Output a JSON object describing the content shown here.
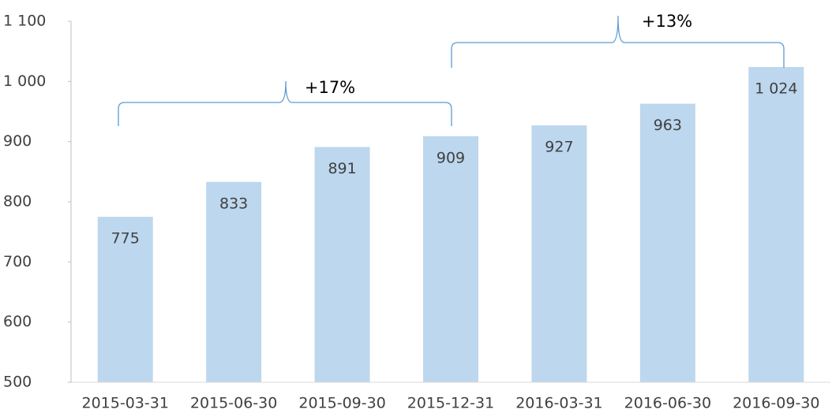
{
  "chart_data": {
    "type": "bar",
    "categories": [
      "2015-03-31",
      "2015-06-30",
      "2015-09-30",
      "2015-12-31",
      "2016-03-31",
      "2016-06-30",
      "2016-09-30"
    ],
    "values": [
      775,
      833,
      891,
      909,
      927,
      963,
      1024
    ],
    "value_labels": [
      "775",
      "833",
      "891",
      "909",
      "927",
      "963",
      "1 024"
    ],
    "color": "#bdd7ee",
    "ylim": [
      500,
      1100
    ],
    "yticks": [
      500,
      600,
      700,
      800,
      900,
      {
        "value": 1000,
        "label": "1 000"
      },
      {
        "value": 1100,
        "label": "1 100"
      }
    ],
    "annotations": [
      "+17%",
      "+13%"
    ]
  }
}
